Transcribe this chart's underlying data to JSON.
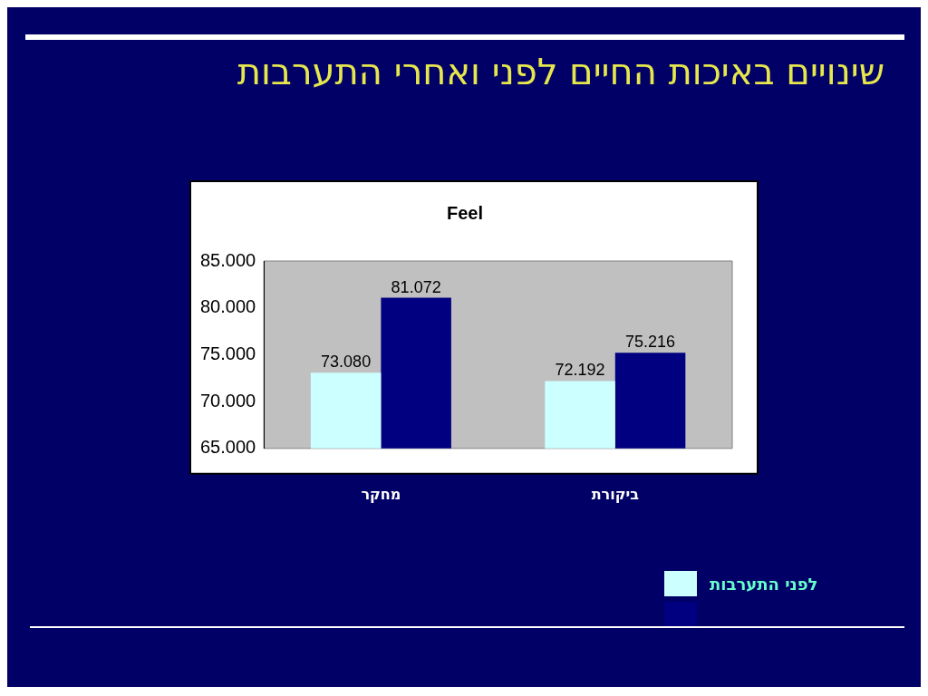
{
  "chart_data": {
    "type": "bar",
    "title": "שינויים באיכות החיים לפני ואחרי התערבות",
    "subtitle": "Feel",
    "categories": [
      "מחקר",
      "ביקורת"
    ],
    "series": [
      {
        "name": "לפני התערבות",
        "color": "#ccffff",
        "values": [
          73.08,
          72.192
        ],
        "value_labels": [
          "73.080",
          "72.192"
        ]
      },
      {
        "color": "#000080",
        "values": [
          81.072,
          75.216
        ],
        "value_labels": [
          "81.072",
          "75.216"
        ]
      }
    ],
    "ylim": [
      65,
      85
    ],
    "yticks": [
      {
        "value": 65,
        "label": "65.000"
      },
      {
        "value": 70,
        "label": "70.000"
      },
      {
        "value": 75,
        "label": "75.000"
      },
      {
        "value": 80,
        "label": "80.000"
      },
      {
        "value": 85,
        "label": "85.000"
      }
    ],
    "grid": false,
    "legend": "bottom right"
  }
}
